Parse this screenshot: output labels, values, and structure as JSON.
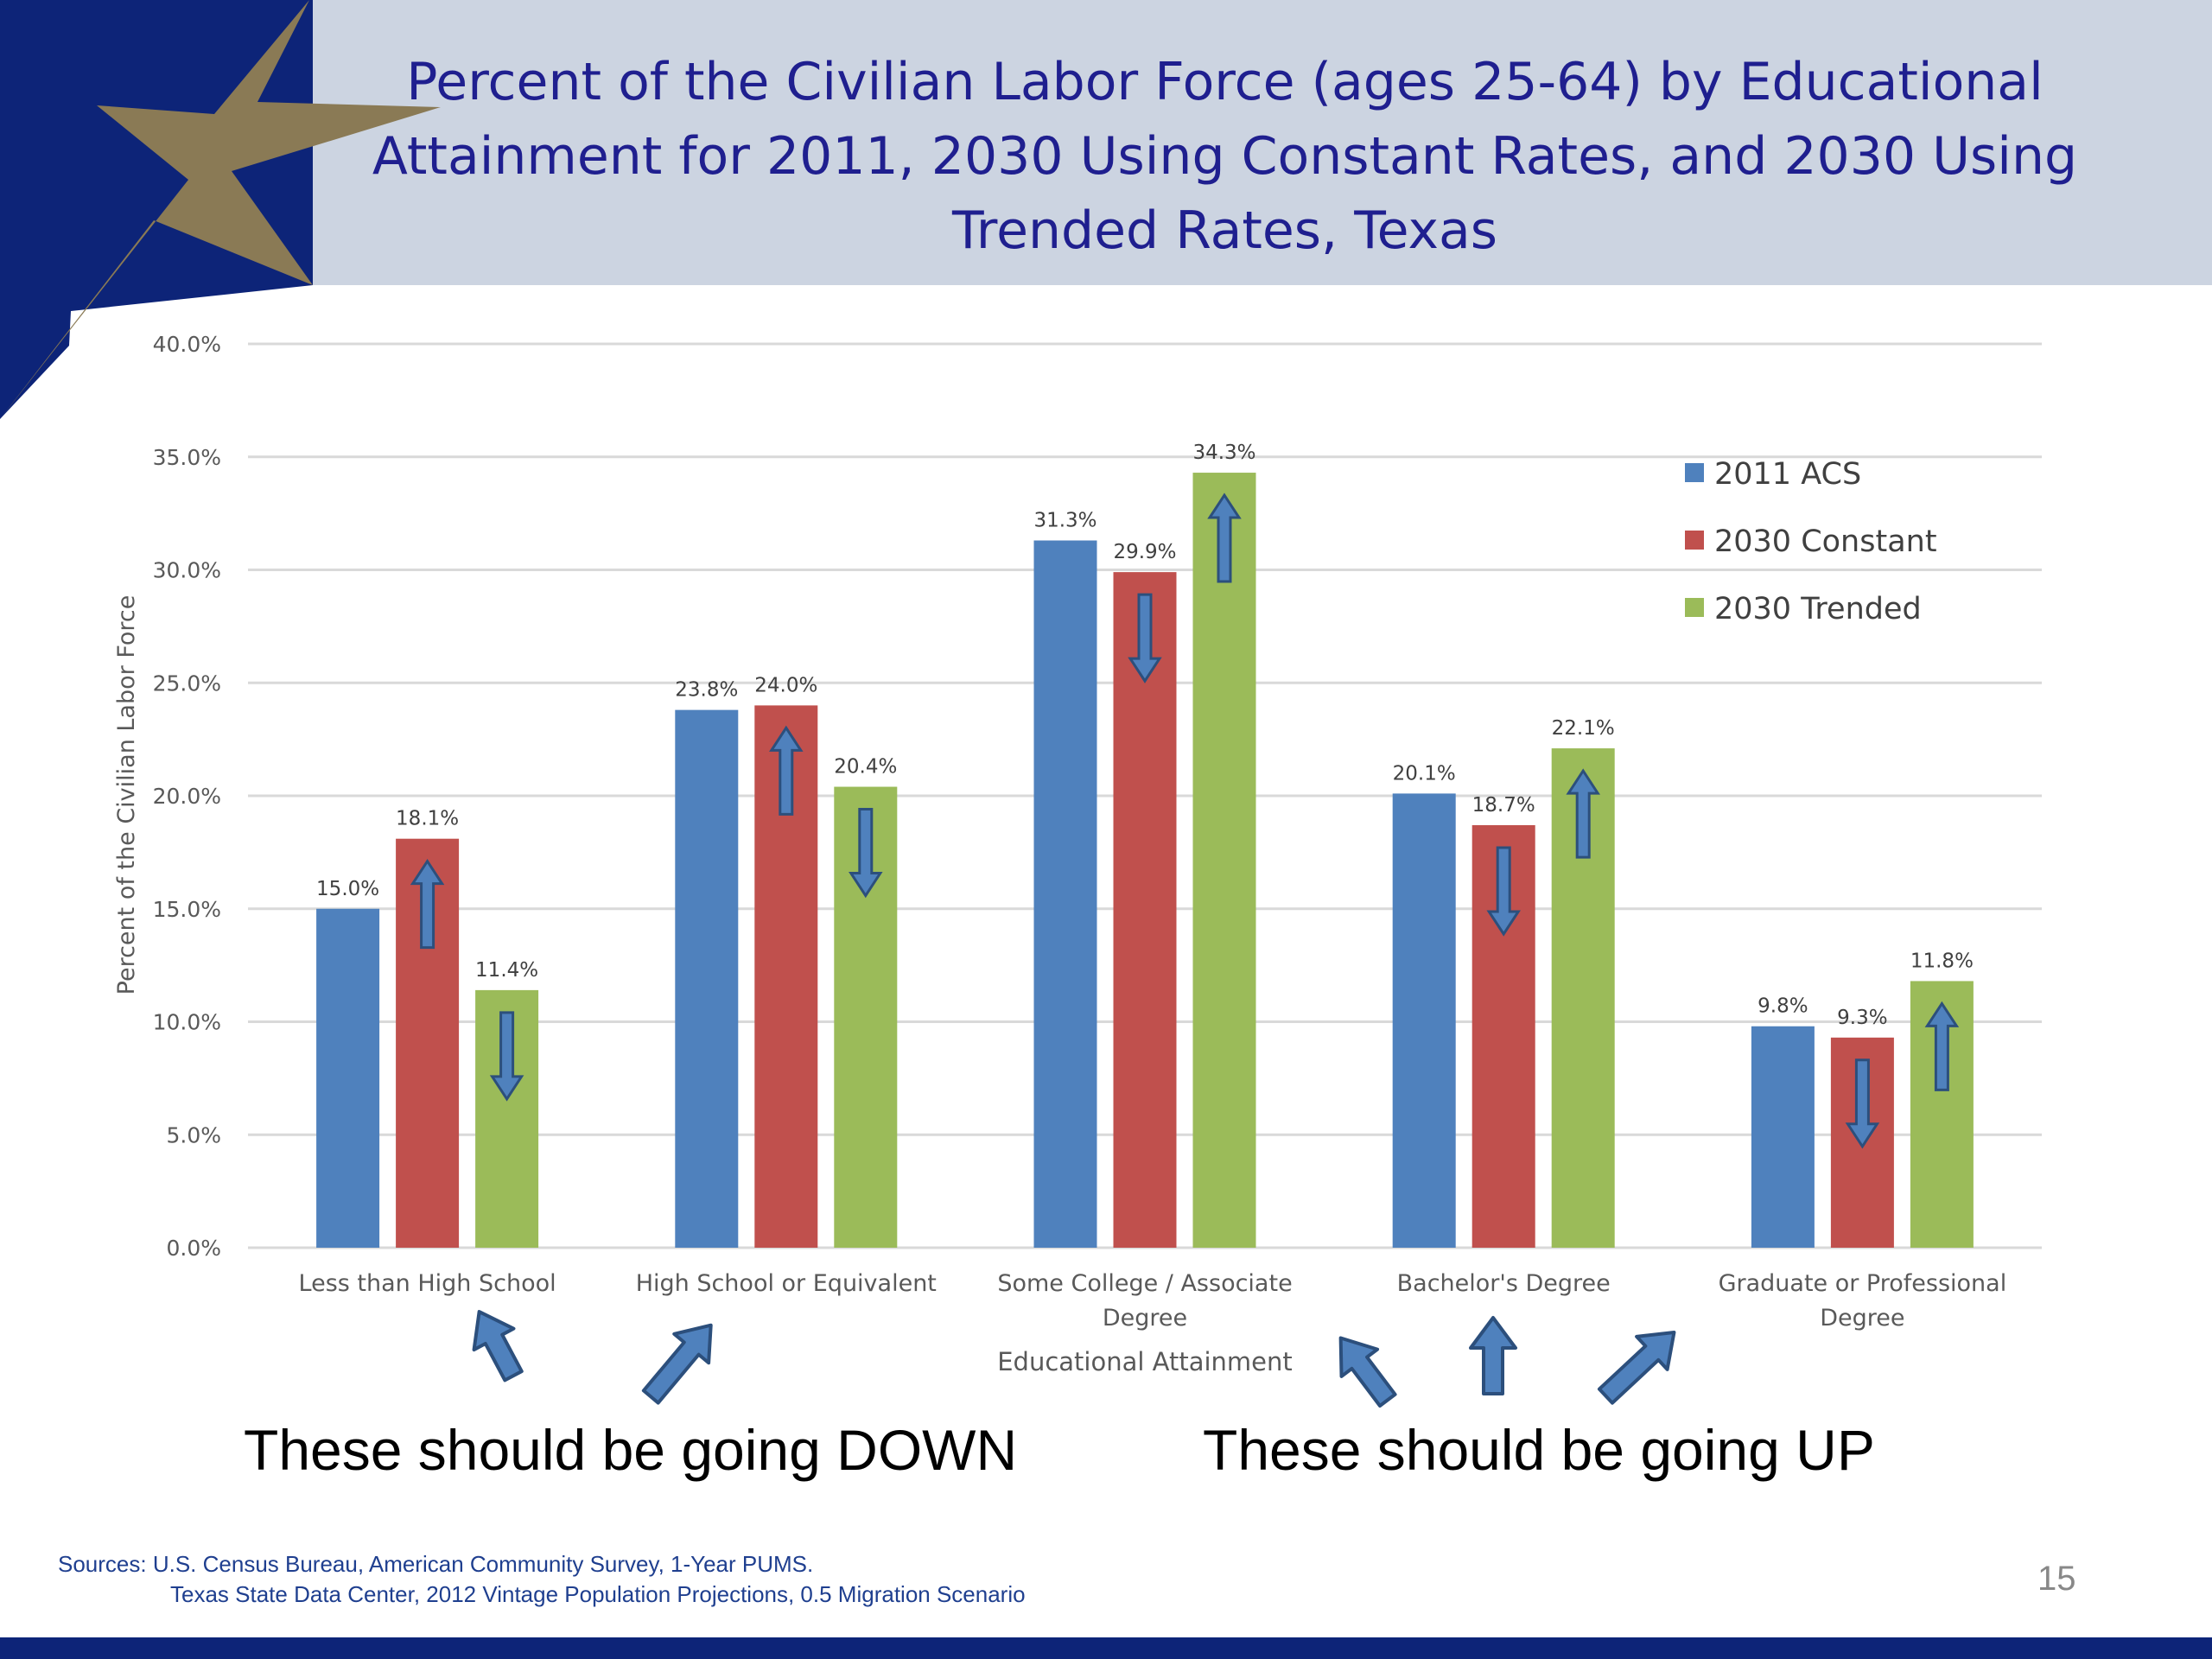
{
  "slide": {
    "title_lines": [
      "Percent of the Civilian Labor Force (ages 25-64) by Educational",
      "Attainment for 2011, 2030 Using Constant Rates, and 2030 Using",
      "Trended Rates, Texas"
    ],
    "callout_down": "These should be going DOWN",
    "callout_up": "These should be going UP",
    "sources_line1": "Sources: U.S. Census Bureau, American Community Survey, 1-Year PUMS.",
    "sources_line2": "Texas State Data Center, 2012 Vintage Population Projections, 0.5 Migration Scenario",
    "page_number": "15",
    "colors": {
      "header_band": "#ccd4e1",
      "navy": "#0d2478",
      "gold_star": "#8a7a55",
      "title_text": "#1f1f8f"
    }
  },
  "chart_data": {
    "type": "bar",
    "title": "",
    "xlabel": "Educational Attainment",
    "ylabel": "Percent of the Civilian Labor Force",
    "ylim": [
      0,
      40
    ],
    "yticks": [
      0,
      5,
      10,
      15,
      20,
      25,
      30,
      35,
      40
    ],
    "ytick_labels": [
      "0.0%",
      "5.0%",
      "10.0%",
      "15.0%",
      "20.0%",
      "25.0%",
      "30.0%",
      "35.0%",
      "40.0%"
    ],
    "grid": true,
    "legend_position": "top-right",
    "categories": [
      [
        "Less than High School"
      ],
      [
        "High School or Equivalent"
      ],
      [
        "Some College / Associate",
        "Degree"
      ],
      [
        "Bachelor's Degree"
      ],
      [
        "Graduate or Professional",
        "Degree"
      ]
    ],
    "series": [
      {
        "name": "2011 ACS",
        "color": "#4f81bd",
        "values": [
          15.0,
          23.8,
          31.3,
          20.1,
          9.8
        ],
        "labels": [
          "15.0%",
          "23.8%",
          "31.3%",
          "20.1%",
          "9.8%"
        ]
      },
      {
        "name": "2030 Constant",
        "color": "#c0504d",
        "values": [
          18.1,
          24.0,
          29.9,
          18.7,
          9.3
        ],
        "labels": [
          "18.1%",
          "24.0%",
          "29.9%",
          "18.7%",
          "9.3%"
        ]
      },
      {
        "name": "2030 Trended",
        "color": "#9bbb59",
        "values": [
          11.4,
          20.4,
          34.3,
          22.1,
          11.8
        ],
        "labels": [
          "11.4%",
          "20.4%",
          "34.3%",
          "22.1%",
          "11.8%"
        ]
      }
    ],
    "bar_arrows": [
      {
        "category": 0,
        "series": 1,
        "direction": "up"
      },
      {
        "category": 0,
        "series": 2,
        "direction": "down"
      },
      {
        "category": 1,
        "series": 1,
        "direction": "up"
      },
      {
        "category": 1,
        "series": 2,
        "direction": "down"
      },
      {
        "category": 2,
        "series": 1,
        "direction": "down"
      },
      {
        "category": 2,
        "series": 2,
        "direction": "up"
      },
      {
        "category": 3,
        "series": 1,
        "direction": "down"
      },
      {
        "category": 3,
        "series": 2,
        "direction": "up"
      },
      {
        "category": 4,
        "series": 1,
        "direction": "down"
      },
      {
        "category": 4,
        "series": 2,
        "direction": "up"
      }
    ]
  }
}
